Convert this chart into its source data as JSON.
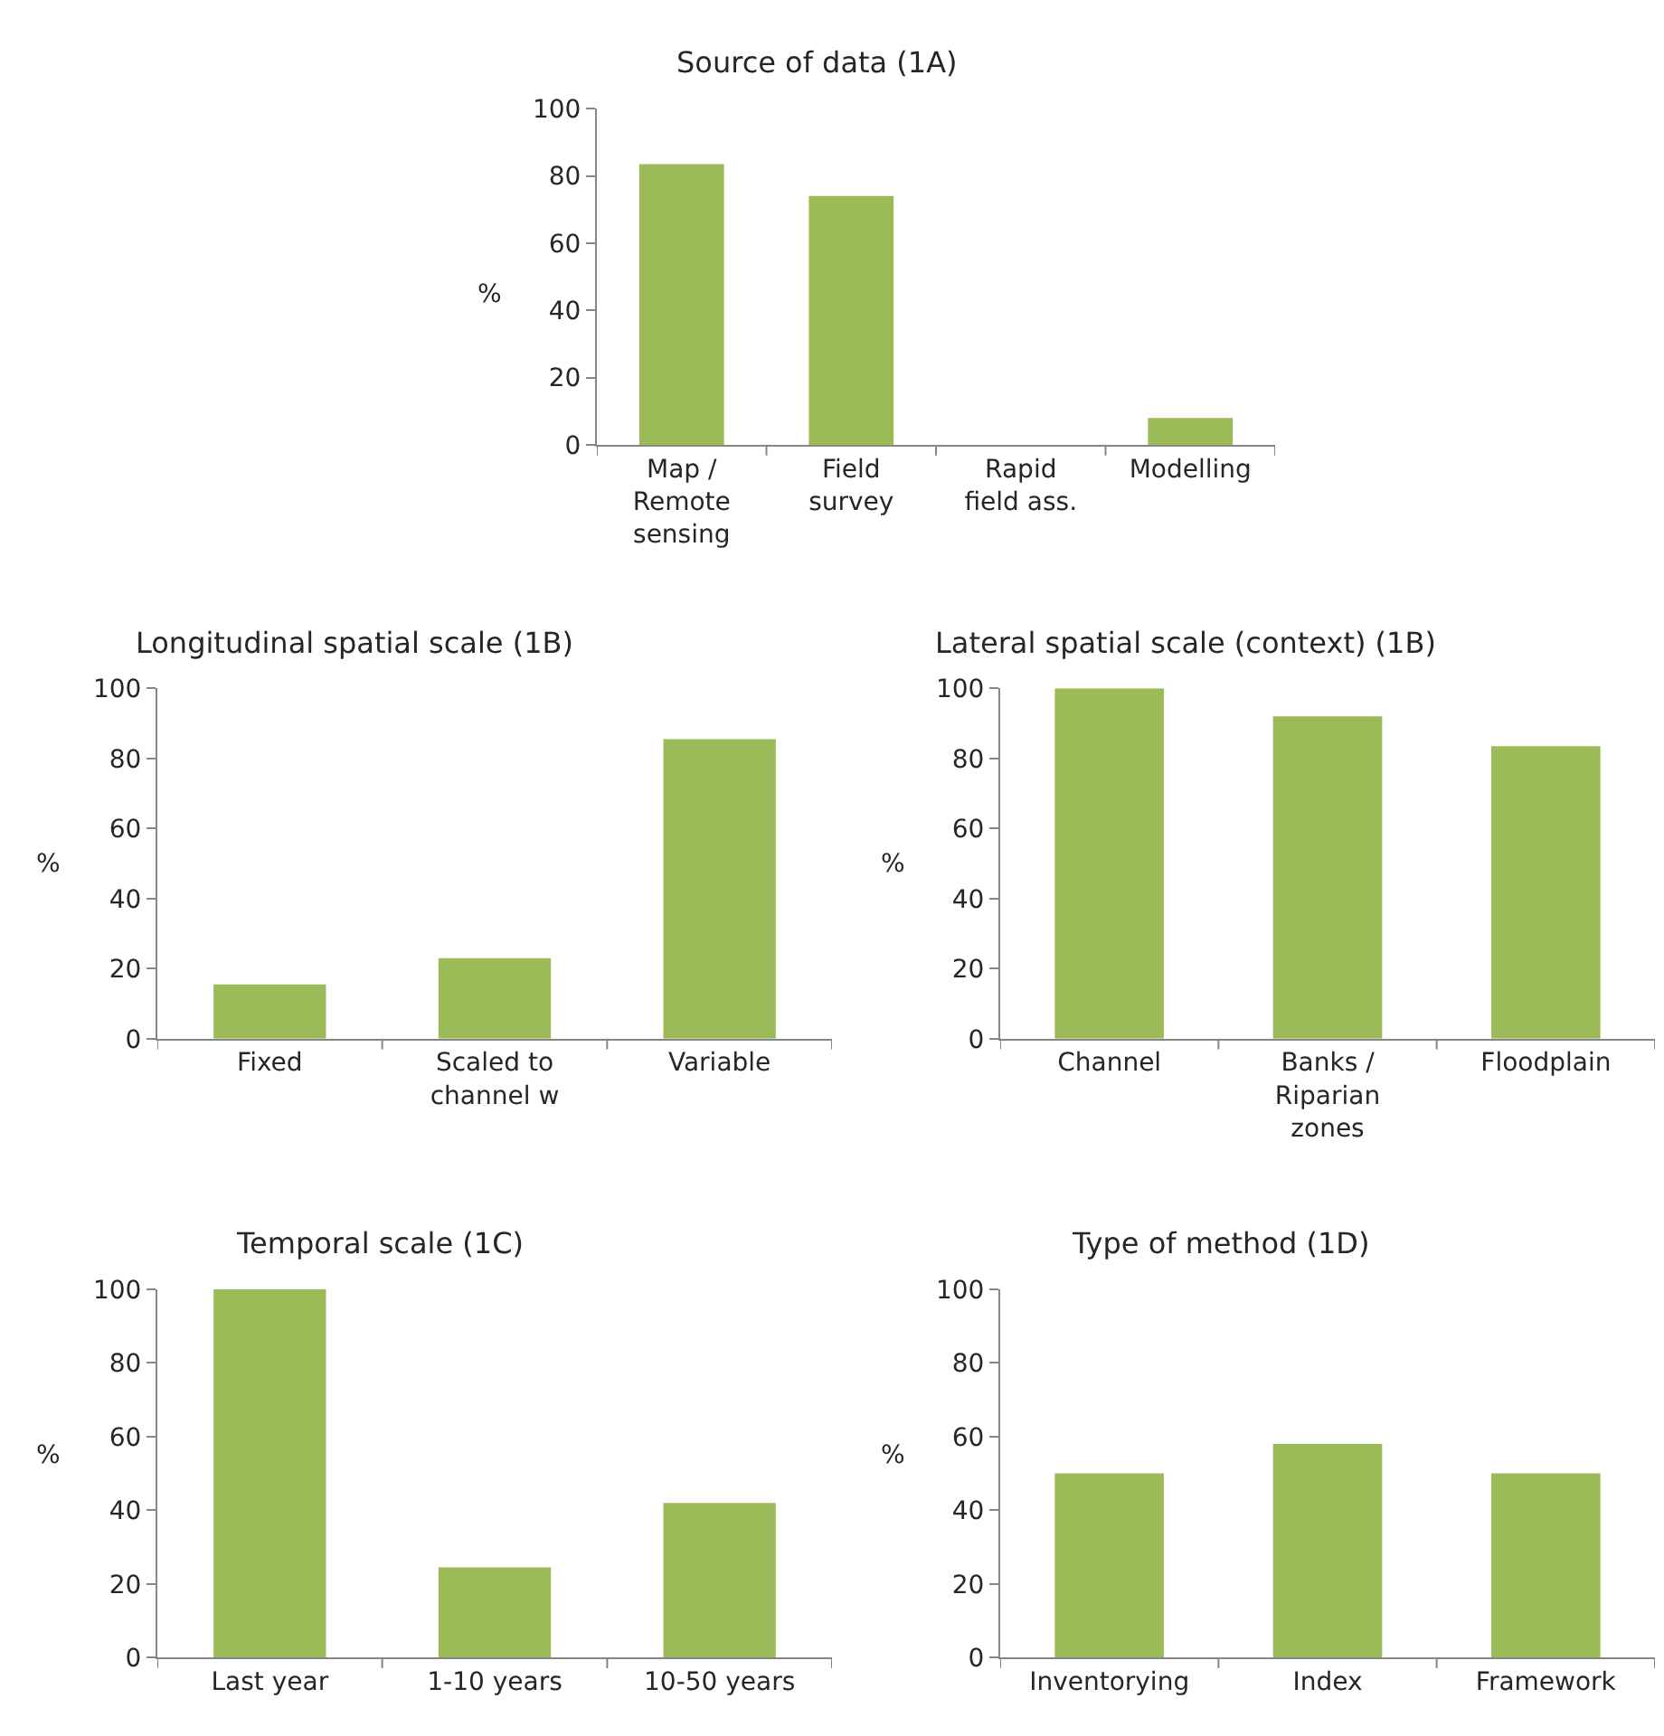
{
  "chart_data": [
    {
      "type": "bar",
      "title": "Source of data (1A)",
      "ylabel": "%",
      "categories": [
        "Map /\nRemote\nsensing",
        "Field\nsurvey",
        "Rapid\nfield ass.",
        "Modelling"
      ],
      "values": [
        83.5,
        74,
        0,
        8
      ],
      "color": "#9bbb59",
      "ylim": [
        0,
        100
      ],
      "yticks": [
        0,
        20,
        40,
        60,
        80,
        100
      ]
    },
    {
      "type": "bar",
      "title": "Longitudinal spatial scale (1B)",
      "ylabel": "%",
      "categories": [
        "Fixed",
        "Scaled to\nchannel w",
        "Variable"
      ],
      "values": [
        15.5,
        23,
        85.5
      ],
      "color": "#9bbb59",
      "ylim": [
        0,
        100
      ],
      "yticks": [
        0,
        20,
        40,
        60,
        80,
        100
      ]
    },
    {
      "type": "bar",
      "title": "Lateral spatial scale (context) (1B)",
      "ylabel": "%",
      "categories": [
        "Channel",
        "Banks /\nRiparian\nzones",
        "Floodplain"
      ],
      "values": [
        100,
        92,
        83.5
      ],
      "color": "#9bbb59",
      "ylim": [
        0,
        100
      ],
      "yticks": [
        0,
        20,
        40,
        60,
        80,
        100
      ]
    },
    {
      "type": "bar",
      "title": "Temporal scale (1C)",
      "ylabel": "%",
      "categories": [
        "Last year",
        "1-10 years",
        "10-50 years"
      ],
      "values": [
        100,
        24.5,
        42
      ],
      "color": "#9bbb59",
      "ylim": [
        0,
        100
      ],
      "yticks": [
        0,
        20,
        40,
        60,
        80,
        100
      ]
    },
    {
      "type": "bar",
      "title": "Type of method (1D)",
      "ylabel": "%",
      "categories": [
        "Inventorying",
        "Index",
        "Framework"
      ],
      "values": [
        50,
        58,
        50
      ],
      "color": "#9bbb59",
      "ylim": [
        0,
        100
      ],
      "yticks": [
        0,
        20,
        40,
        60,
        80,
        100
      ]
    }
  ]
}
